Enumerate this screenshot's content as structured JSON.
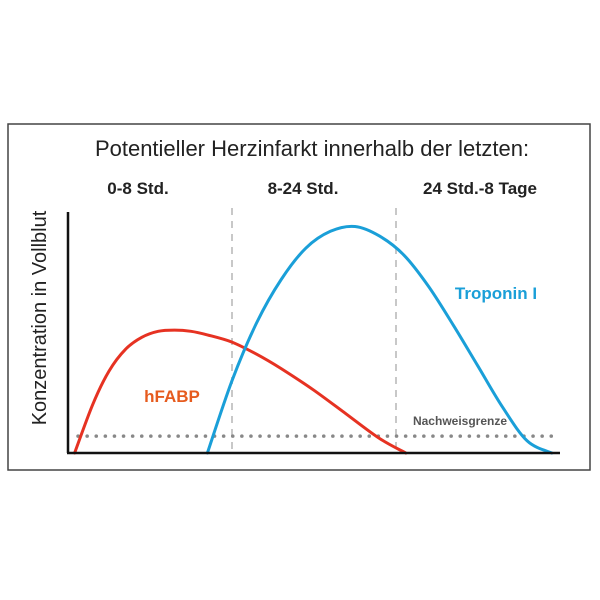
{
  "chart_data": {
    "type": "line",
    "title": "Potentieller Herzinfarkt innerhalb der letzten:",
    "ylabel": "Konzentration in Vollblut",
    "xlabel": "",
    "phases": [
      "0-8 Std.",
      "8-24 Std.",
      "24 Std.-8 Tage"
    ],
    "detection_limit_label": "Nachweisgrenze",
    "detection_limit_level": 0.07,
    "phase_boundaries": [
      1,
      2
    ],
    "xlim": [
      0,
      3
    ],
    "ylim": [
      0,
      1
    ],
    "grid": false,
    "series": [
      {
        "name": "hFABP",
        "color": "#e63222",
        "label_color": "#e65b1e",
        "x": [
          0.04,
          0.15,
          0.25,
          0.35,
          0.45,
          0.55,
          0.65,
          0.75,
          0.85,
          1.0,
          1.15,
          1.3,
          1.5,
          1.7,
          1.9,
          2.06
        ],
        "y": [
          0.0,
          0.2,
          0.34,
          0.43,
          0.48,
          0.505,
          0.51,
          0.505,
          0.49,
          0.46,
          0.41,
          0.35,
          0.26,
          0.16,
          0.06,
          0.0
        ]
      },
      {
        "name": "Troponin I",
        "color": "#1a9fd8",
        "label_color": "#1a9fd8",
        "x": [
          0.85,
          1.0,
          1.15,
          1.3,
          1.45,
          1.6,
          1.75,
          1.9,
          2.05,
          2.2,
          2.35,
          2.5,
          2.65,
          2.8,
          2.95
        ],
        "y": [
          0.0,
          0.3,
          0.54,
          0.72,
          0.85,
          0.92,
          0.94,
          0.9,
          0.82,
          0.69,
          0.53,
          0.36,
          0.19,
          0.05,
          0.0
        ]
      }
    ]
  }
}
